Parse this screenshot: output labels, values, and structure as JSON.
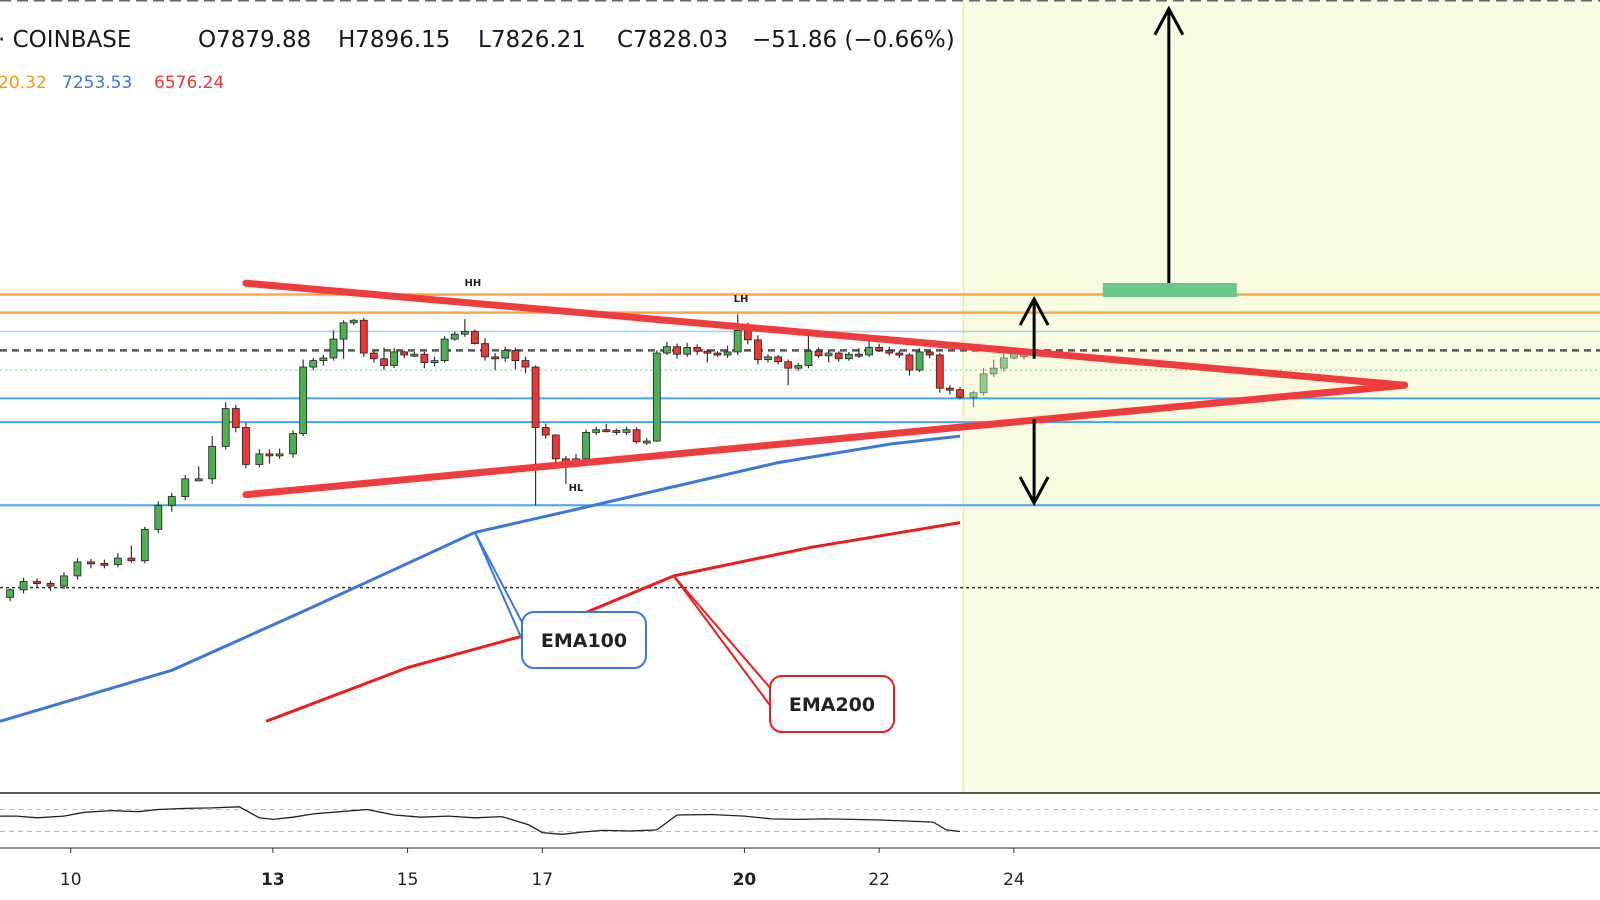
{
  "header": {
    "symbol": "· COINBASE",
    "open": "O7879.88",
    "high": "H7896.15",
    "low": "L7826.21",
    "close": "C7828.03",
    "change": "−51.86 (−0.66%)",
    "ma_values": [
      {
        "text": "20.32",
        "color": "#f39c12"
      },
      {
        "text": "7253.53",
        "color": "#3c78d8"
      },
      {
        "text": "6576.24",
        "color": "#e53935"
      }
    ]
  },
  "colors": {
    "up": "#4caf50",
    "down": "#e53935",
    "triangle": "#f03c3c",
    "ema100": "#3c78d8",
    "ema200": "#ee1c1c",
    "resistance": "#f7a94a",
    "support": "#42a5f5",
    "forecast_zone": "#f8fae1",
    "target": "#66c98a"
  },
  "chart_data": {
    "type": "candlestick",
    "x_ticks": [
      {
        "day": 10,
        "label": "10",
        "bold": false
      },
      {
        "day": 13,
        "label": "13",
        "bold": true
      },
      {
        "day": 15,
        "label": "15",
        "bold": false
      },
      {
        "day": 17,
        "label": "17",
        "bold": false
      },
      {
        "day": 20,
        "label": "20",
        "bold": true
      },
      {
        "day": 22,
        "label": "22",
        "bold": false
      },
      {
        "day": 24,
        "label": "24",
        "bold": false
      }
    ],
    "x_range": [
      8.95,
      32.7
    ],
    "y_range": [
      6500,
      8600
    ],
    "forecast_start_day": 23.25,
    "resistance_levels": [
      7820,
      7772
    ],
    "light_levels": [
      7722,
      7672,
      7620
    ],
    "support_levels": [
      7545,
      7482,
      7262
    ],
    "dotted_levels": [
      7044
    ],
    "triangle": {
      "start_day": 12.6,
      "upper_start": 7850,
      "lower_start": 7290,
      "apex_day": 29.8,
      "apex_price": 7580
    },
    "annotations": [
      {
        "text": "HH",
        "day": 15.97,
        "price": 7842
      },
      {
        "text": "LH",
        "day": 19.95,
        "price": 7800
      },
      {
        "text": "HL",
        "day": 17.5,
        "price": 7300
      }
    ],
    "callouts": [
      {
        "text": "EMA100",
        "series": "ema100",
        "day": 16.0,
        "price": 7190
      },
      {
        "text": "EMA200",
        "series": "ema200",
        "day": 18.95,
        "price": 7075
      }
    ],
    "target_price": 7832,
    "top_target_price": 8598,
    "ema100": [
      [
        8.95,
        6690
      ],
      [
        11.5,
        6825
      ],
      [
        13.5,
        6985
      ],
      [
        16.0,
        7190
      ],
      [
        17.6,
        7255
      ],
      [
        18.8,
        7305
      ],
      [
        20.5,
        7375
      ],
      [
        22.2,
        7425
      ],
      [
        23.2,
        7445
      ]
    ],
    "ema200": [
      [
        12.9,
        6690
      ],
      [
        15.0,
        6832
      ],
      [
        17.0,
        6930
      ],
      [
        18.95,
        7075
      ],
      [
        21.0,
        7151
      ],
      [
        23.2,
        7216
      ]
    ],
    "candles": [
      [
        9.1,
        7018,
        7038,
        7008,
        7042
      ],
      [
        9.3,
        7038,
        7060,
        7028,
        7070
      ],
      [
        9.5,
        7060,
        7055,
        7045,
        7068
      ],
      [
        9.7,
        7055,
        7048,
        7035,
        7062
      ],
      [
        9.9,
        7048,
        7075,
        7040,
        7085
      ],
      [
        10.1,
        7075,
        7112,
        7065,
        7122
      ],
      [
        10.3,
        7112,
        7108,
        7095,
        7120
      ],
      [
        10.5,
        7108,
        7105,
        7095,
        7118
      ],
      [
        10.7,
        7105,
        7122,
        7098,
        7135
      ],
      [
        10.9,
        7122,
        7115,
        7110,
        7155
      ],
      [
        11.1,
        7115,
        7198,
        7108,
        7205
      ],
      [
        11.3,
        7198,
        7262,
        7188,
        7272
      ],
      [
        11.5,
        7262,
        7285,
        7245,
        7295
      ],
      [
        11.7,
        7285,
        7332,
        7275,
        7342
      ],
      [
        11.9,
        7332,
        7332,
        7325,
        7365
      ],
      [
        12.1,
        7332,
        7418,
        7318,
        7445
      ],
      [
        12.3,
        7418,
        7518,
        7410,
        7535
      ],
      [
        12.45,
        7518,
        7468,
        7455,
        7528
      ],
      [
        12.6,
        7468,
        7370,
        7360,
        7480
      ],
      [
        12.8,
        7370,
        7398,
        7362,
        7410
      ],
      [
        12.95,
        7398,
        7395,
        7372,
        7410
      ],
      [
        13.1,
        7395,
        7398,
        7385,
        7412
      ],
      [
        13.3,
        7398,
        7452,
        7388,
        7460
      ],
      [
        13.45,
        7452,
        7628,
        7445,
        7648
      ],
      [
        13.6,
        7628,
        7645,
        7620,
        7652
      ],
      [
        13.75,
        7645,
        7652,
        7632,
        7660
      ],
      [
        13.9,
        7652,
        7702,
        7645,
        7725
      ],
      [
        14.05,
        7702,
        7745,
        7650,
        7752
      ],
      [
        14.2,
        7745,
        7752,
        7740,
        7755
      ],
      [
        14.35,
        7752,
        7665,
        7655,
        7758
      ],
      [
        14.5,
        7665,
        7650,
        7640,
        7670
      ],
      [
        14.65,
        7650,
        7632,
        7620,
        7680
      ],
      [
        14.8,
        7632,
        7668,
        7625,
        7678
      ],
      [
        14.95,
        7668,
        7660,
        7652,
        7672
      ],
      [
        15.1,
        7660,
        7662,
        7655,
        7668
      ],
      [
        15.25,
        7662,
        7640,
        7625,
        7668
      ],
      [
        15.4,
        7640,
        7645,
        7630,
        7655
      ],
      [
        15.55,
        7645,
        7702,
        7640,
        7710
      ],
      [
        15.7,
        7702,
        7715,
        7698,
        7722
      ],
      [
        15.85,
        7715,
        7722,
        7708,
        7755
      ],
      [
        16.0,
        7722,
        7690,
        7688,
        7728
      ],
      [
        16.15,
        7690,
        7655,
        7645,
        7705
      ],
      [
        16.3,
        7655,
        7652,
        7620,
        7665
      ],
      [
        16.45,
        7652,
        7672,
        7642,
        7682
      ],
      [
        16.6,
        7672,
        7645,
        7622,
        7680
      ],
      [
        16.75,
        7645,
        7628,
        7612,
        7655
      ],
      [
        16.9,
        7628,
        7468,
        7262,
        7632
      ],
      [
        17.05,
        7468,
        7448,
        7438,
        7478
      ],
      [
        17.2,
        7448,
        7385,
        7362,
        7450
      ],
      [
        17.35,
        7385,
        7372,
        7318,
        7392
      ],
      [
        17.5,
        7372,
        7385,
        7362,
        7398
      ],
      [
        17.65,
        7385,
        7455,
        7378,
        7462
      ],
      [
        17.8,
        7455,
        7462,
        7448,
        7470
      ],
      [
        17.95,
        7462,
        7460,
        7455,
        7478
      ],
      [
        18.1,
        7460,
        7455,
        7448,
        7465
      ],
      [
        18.25,
        7455,
        7462,
        7448,
        7470
      ],
      [
        18.4,
        7462,
        7430,
        7425,
        7468
      ],
      [
        18.55,
        7430,
        7432,
        7422,
        7440
      ],
      [
        18.7,
        7432,
        7665,
        7430,
        7672
      ],
      [
        18.85,
        7665,
        7682,
        7660,
        7695
      ],
      [
        19.0,
        7682,
        7662,
        7650,
        7690
      ],
      [
        19.15,
        7662,
        7680,
        7655,
        7692
      ],
      [
        19.3,
        7680,
        7670,
        7660,
        7688
      ],
      [
        19.45,
        7670,
        7665,
        7640,
        7675
      ],
      [
        19.6,
        7665,
        7660,
        7655,
        7670
      ],
      [
        19.75,
        7660,
        7668,
        7652,
        7685
      ],
      [
        19.9,
        7668,
        7725,
        7660,
        7768
      ],
      [
        20.05,
        7725,
        7700,
        7688,
        7745
      ],
      [
        20.2,
        7700,
        7648,
        7635,
        7712
      ],
      [
        20.35,
        7648,
        7655,
        7640,
        7662
      ],
      [
        20.5,
        7655,
        7642,
        7635,
        7660
      ],
      [
        20.65,
        7642,
        7625,
        7580,
        7648
      ],
      [
        20.8,
        7625,
        7632,
        7618,
        7640
      ],
      [
        20.95,
        7632,
        7670,
        7625,
        7718
      ],
      [
        21.1,
        7670,
        7658,
        7652,
        7680
      ],
      [
        21.25,
        7658,
        7665,
        7640,
        7672
      ],
      [
        21.4,
        7665,
        7650,
        7642,
        7670
      ],
      [
        21.55,
        7650,
        7662,
        7645,
        7668
      ],
      [
        21.7,
        7662,
        7660,
        7652,
        7678
      ],
      [
        21.85,
        7660,
        7680,
        7655,
        7700
      ],
      [
        22.0,
        7680,
        7672,
        7668,
        7690
      ],
      [
        22.15,
        7672,
        7665,
        7658,
        7682
      ],
      [
        22.3,
        7665,
        7660,
        7652,
        7672
      ],
      [
        22.45,
        7660,
        7620,
        7605,
        7665
      ],
      [
        22.6,
        7620,
        7668,
        7615,
        7678
      ],
      [
        22.75,
        7668,
        7660,
        7652,
        7672
      ],
      [
        22.9,
        7660,
        7572,
        7560,
        7665
      ],
      [
        23.05,
        7572,
        7568,
        7555,
        7580
      ],
      [
        23.2,
        7568,
        7548,
        7542,
        7575
      ],
      [
        23.4,
        7548,
        7560,
        7522,
        7565
      ],
      [
        23.55,
        7560,
        7610,
        7552,
        7625
      ],
      [
        23.7,
        7610,
        7625,
        7602,
        7648
      ],
      [
        23.85,
        7625,
        7652,
        7615,
        7665
      ],
      [
        24.0,
        7652,
        7665,
        7648,
        7675
      ],
      [
        24.15,
        7665,
        7655,
        7648,
        7668
      ]
    ],
    "rsi": {
      "y_range": [
        0,
        100
      ],
      "dashed_levels": [
        70,
        30
      ],
      "values": [
        [
          8.95,
          58
        ],
        [
          9.2,
          58
        ],
        [
          9.5,
          55
        ],
        [
          9.9,
          58
        ],
        [
          10.2,
          65
        ],
        [
          10.6,
          68
        ],
        [
          11.0,
          66
        ],
        [
          11.3,
          70
        ],
        [
          11.7,
          72
        ],
        [
          12.1,
          73
        ],
        [
          12.5,
          75
        ],
        [
          12.8,
          55
        ],
        [
          13.0,
          52
        ],
        [
          13.3,
          56
        ],
        [
          13.6,
          62
        ],
        [
          14.0,
          66
        ],
        [
          14.4,
          70
        ],
        [
          14.8,
          60
        ],
        [
          15.2,
          56
        ],
        [
          15.6,
          58
        ],
        [
          16.0,
          55
        ],
        [
          16.4,
          57
        ],
        [
          16.8,
          42
        ],
        [
          17.0,
          28
        ],
        [
          17.3,
          25
        ],
        [
          17.6,
          29
        ],
        [
          17.9,
          32
        ],
        [
          18.3,
          31
        ],
        [
          18.7,
          33
        ],
        [
          19.0,
          60
        ],
        [
          19.5,
          61
        ],
        [
          20.0,
          58
        ],
        [
          20.4,
          53
        ],
        [
          20.8,
          52
        ],
        [
          21.2,
          53
        ],
        [
          21.6,
          52
        ],
        [
          22.0,
          51
        ],
        [
          22.4,
          49
        ],
        [
          22.8,
          47
        ],
        [
          23.0,
          33
        ],
        [
          23.2,
          30
        ]
      ]
    }
  }
}
